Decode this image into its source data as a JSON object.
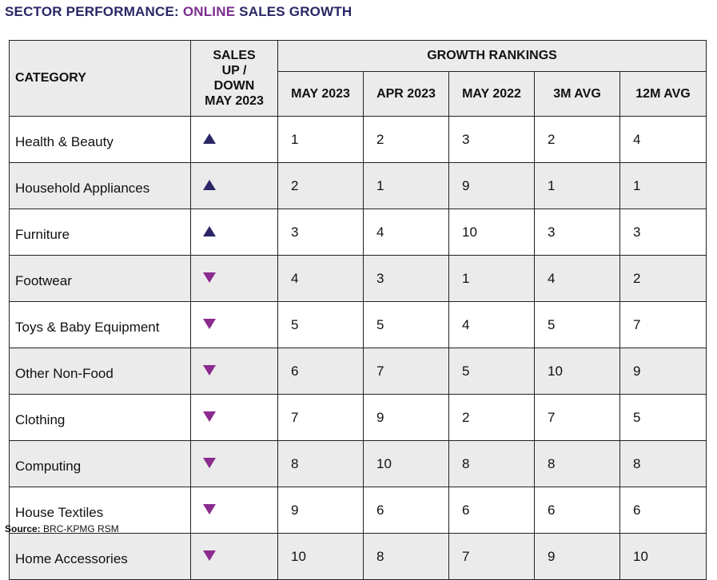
{
  "title": {
    "part1": "SECTOR PERFORMANCE: ",
    "accent": "ONLINE",
    "part2": " SALES GROWTH"
  },
  "table": {
    "category_header": "CATEGORY",
    "sales_header_lines": [
      "SALES",
      "UP /",
      "DOWN",
      "MAY 2023"
    ],
    "group_header": "GROWTH RANKINGS",
    "rank_columns": [
      "MAY 2023",
      "APR 2023",
      "MAY 2022",
      "3M AVG",
      "12M AVG"
    ],
    "rows": [
      {
        "category": "Health & Beauty",
        "direction": "up",
        "ranks": [
          "1",
          "2",
          "3",
          "2",
          "4"
        ]
      },
      {
        "category": "Household Appliances",
        "direction": "up",
        "ranks": [
          "2",
          "1",
          "9",
          "1",
          "1"
        ]
      },
      {
        "category": "Furniture",
        "direction": "up",
        "ranks": [
          "3",
          "4",
          "10",
          "3",
          "3"
        ]
      },
      {
        "category": "Footwear",
        "direction": "down",
        "ranks": [
          "4",
          "3",
          "1",
          "4",
          "2"
        ]
      },
      {
        "category": "Toys & Baby Equipment",
        "direction": "down",
        "ranks": [
          "5",
          "5",
          "4",
          "5",
          "7"
        ]
      },
      {
        "category": "Other Non-Food",
        "direction": "down",
        "ranks": [
          "6",
          "7",
          "5",
          "10",
          "9"
        ]
      },
      {
        "category": "Clothing",
        "direction": "down",
        "ranks": [
          "7",
          "9",
          "2",
          "7",
          "5"
        ]
      },
      {
        "category": "Computing",
        "direction": "down",
        "ranks": [
          "8",
          "10",
          "8",
          "8",
          "8"
        ]
      },
      {
        "category": "House Textiles",
        "direction": "down",
        "ranks": [
          "9",
          "6",
          "6",
          "6",
          "6"
        ]
      },
      {
        "category": "Home Accessories",
        "direction": "down",
        "ranks": [
          "10",
          "8",
          "7",
          "9",
          "10"
        ]
      }
    ]
  },
  "source": {
    "label": "Source:",
    "text": " BRC-KPMG RSM"
  },
  "colors": {
    "title": "#2b2766",
    "accent": "#7b2d8e",
    "up_arrow": "#2b2766",
    "down_arrow": "#8b2a8f",
    "shade": "#ebebeb"
  },
  "icons": {
    "up": "triangle-up-icon",
    "down": "triangle-down-icon"
  }
}
